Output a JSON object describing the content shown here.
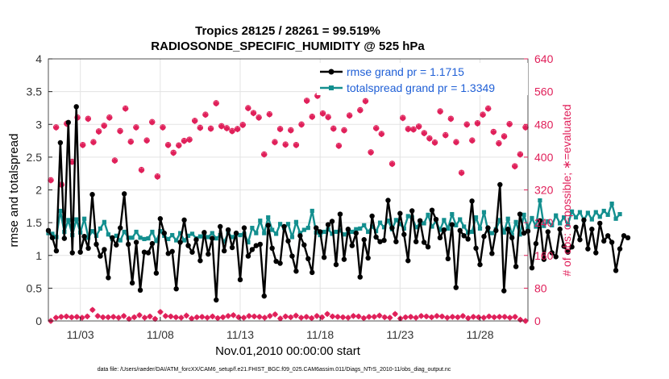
{
  "chart_data": {
    "type": "line",
    "title": "Tropics 28125 / 28261 = 99.519%",
    "subtitle": "RADIOSONDE_SPECIFIC_HUMIDITY @ 525 hPa",
    "xlabel": "Nov.01,2010 00:00:00 start",
    "ylabel": "rmse and totalspread",
    "y2label": "# of obs: o=possible; ∗=evaluated",
    "footnote": "data file: /Users/raeder/DAI/ATM_forcXX/CAM6_setup/f.e21.FHIST_BGC.f09_025.CAM6assim.011/Diags_NTrS_2010-11/obs_diag_output.nc",
    "xlim": [
      1.0,
      31.0
    ],
    "ylim": [
      0,
      4
    ],
    "y2lim": [
      0,
      640
    ],
    "x_ticks": [
      {
        "value": 3,
        "label": "11/03"
      },
      {
        "value": 8,
        "label": "11/08"
      },
      {
        "value": 13,
        "label": "11/13"
      },
      {
        "value": 18,
        "label": "11/18"
      },
      {
        "value": 23,
        "label": "11/23"
      },
      {
        "value": 28,
        "label": "11/28"
      }
    ],
    "y_ticks": [
      "0",
      "0.5",
      "1",
      "1.5",
      "2",
      "2.5",
      "3",
      "3.5",
      "4"
    ],
    "y2_ticks": [
      "0",
      "80",
      "160",
      "240",
      "320",
      "400",
      "480",
      "560",
      "640"
    ],
    "legend": [
      {
        "label": "rmse grand pr = 1.1715",
        "color": "#000000"
      },
      {
        "label": "totalspread grand pr = 1.3349",
        "color": "#138f8f"
      }
    ],
    "colors": {
      "rmse": "#000000",
      "spread": "#138f8f",
      "obs": "#e0205a",
      "grid": "#e3e3e3"
    },
    "x_start": 1.0,
    "x_step": 0.25,
    "series": [
      {
        "name": "rmse",
        "values": [
          1.38,
          1.27,
          1.07,
          2.72,
          1.26,
          3.03,
          1.04,
          3.27,
          1.05,
          1.29,
          1.11,
          1.93,
          1.17,
          0.99,
          1.09,
          0.66,
          1.27,
          1.16,
          1.42,
          1.94,
          1.17,
          0.58,
          1.2,
          0.47,
          1.05,
          1.04,
          1.18,
          0.73,
          1.56,
          1.34,
          1.03,
          1.06,
          0.49,
          1.2,
          1.54,
          1.15,
          1.05,
          1.24,
          0.92,
          1.35,
          1.02,
          1.26,
          0.32,
          1.44,
          1.07,
          1.39,
          1.12,
          1.34,
          0.63,
          1.42,
          0.99,
          1.09,
          1.15,
          1.17,
          0.38,
          1.46,
          1.11,
          0.91,
          0.88,
          1.44,
          1.22,
          0.99,
          0.76,
          1.3,
          1.16,
          0.95,
          0.74,
          1.42,
          1.36,
          0.97,
          1.47,
          1.52,
          0.86,
          1.63,
          0.94,
          1.4,
          1.15,
          1.34,
          0.67,
          1.24,
          0.96,
          1.6,
          1.28,
          1.21,
          1.23,
          1.84,
          1.42,
          1.21,
          1.64,
          1.32,
          0.92,
          1.68,
          1.21,
          1.53,
          1.2,
          1.13,
          1.69,
          1.55,
          1.27,
          1.39,
          0.95,
          1.47,
          0.51,
          1.38,
          1.3,
          1.25,
          1.83,
          1.11,
          0.86,
          1.29,
          1.42,
          1.03,
          1.38,
          2.08,
          0.46,
          1.4,
          1.27,
          0.83,
          1.63,
          1.34,
          1.37,
          0.81,
          1.18,
          1.53,
          0.94,
          1.36,
          1.04,
          0.98,
          1.4,
          1.14,
          1.05,
          1.13,
          1.43,
          1.24,
          1.54,
          1.1,
          1.4,
          1.04,
          1.49,
          1.22,
          1.3,
          1.2,
          0.77,
          1.1,
          1.3,
          1.27
        ]
      },
      {
        "name": "totalspread",
        "values": [
          1.34,
          1.33,
          1.28,
          1.68,
          1.36,
          1.54,
          1.31,
          1.55,
          1.35,
          1.56,
          1.27,
          1.37,
          1.3,
          1.41,
          1.51,
          1.32,
          1.25,
          1.3,
          1.23,
          1.36,
          1.27,
          1.27,
          1.36,
          1.27,
          1.25,
          1.26,
          1.36,
          1.22,
          1.37,
          1.3,
          1.25,
          1.31,
          1.23,
          1.34,
          1.23,
          1.3,
          1.33,
          1.26,
          1.29,
          1.3,
          1.28,
          1.34,
          1.26,
          1.31,
          1.21,
          1.34,
          1.28,
          1.33,
          1.31,
          1.33,
          1.2,
          1.42,
          1.34,
          1.53,
          1.34,
          1.58,
          1.39,
          1.33,
          1.48,
          1.42,
          1.48,
          1.28,
          1.51,
          1.34,
          1.39,
          1.42,
          1.68,
          1.35,
          1.31,
          1.36,
          1.4,
          1.33,
          1.36,
          1.38,
          1.32,
          1.35,
          1.36,
          1.4,
          1.41,
          1.46,
          1.36,
          1.44,
          1.37,
          1.5,
          1.43,
          1.53,
          1.4,
          1.54,
          1.48,
          1.41,
          1.6,
          1.58,
          1.43,
          1.49,
          1.49,
          1.62,
          1.44,
          1.52,
          1.39,
          1.54,
          1.41,
          1.63,
          1.46,
          1.55,
          1.44,
          1.35,
          1.36,
          1.58,
          1.41,
          1.66,
          1.38,
          1.34,
          1.4,
          1.54,
          1.35,
          1.56,
          1.31,
          1.51,
          1.32,
          1.62,
          1.41,
          1.57,
          1.44,
          1.84,
          1.45,
          1.52,
          1.46,
          1.61,
          1.49,
          1.58,
          1.47,
          1.67,
          1.58,
          1.66,
          1.54,
          1.65,
          1.55,
          1.66,
          1.59,
          1.68,
          1.62,
          1.79,
          1.56,
          1.63
        ]
      },
      {
        "name": "obs_possible",
        "axis": "right",
        "values": [
          344,
          473,
          333,
          482,
          389,
          497,
          430,
          494,
          437,
          463,
          477,
          497,
          392,
          464,
          519,
          438,
          473,
          369,
          441,
          486,
          353,
          473,
          430,
          411,
          429,
          440,
          443,
          489,
          472,
          504,
          470,
          532,
          476,
          471,
          464,
          469,
          479,
          520,
          508,
          497,
          407,
          505,
          437,
          469,
          431,
          466,
          430,
          480,
          538,
          499,
          550,
          507,
          498,
          470,
          428,
          466,
          502,
          565,
          515,
          537,
          412,
          471,
          457,
          561,
          384,
          575,
          496,
          469,
          468,
          475,
          459,
          446,
          436,
          512,
          454,
          494,
          437,
          362,
          480,
          441,
          483,
          504,
          519,
          462,
          434,
          451,
          481,
          378,
          407,
          473
        ]
      },
      {
        "name": "obs_evaluated",
        "axis": "right",
        "values": [
          343,
          472,
          332,
          481,
          388,
          496,
          429,
          493,
          436,
          462,
          476,
          496,
          391,
          463,
          518,
          437,
          472,
          368,
          440,
          485,
          352,
          472,
          429,
          410,
          428,
          439,
          442,
          488,
          471,
          503,
          469,
          531,
          475,
          470,
          463,
          468,
          478,
          519,
          507,
          496,
          406,
          504,
          436,
          468,
          430,
          465,
          429,
          479,
          537,
          498,
          549,
          506,
          497,
          469,
          427,
          465,
          501,
          564,
          514,
          536,
          411,
          470,
          456,
          560,
          383,
          574,
          495,
          468,
          467,
          474,
          458,
          445,
          435,
          511,
          453,
          493,
          436,
          361,
          479,
          440,
          482,
          503,
          518,
          461,
          433,
          450,
          480,
          377,
          406,
          472
        ]
      },
      {
        "name": "obs_low",
        "axis": "right",
        "values": [
          0,
          8,
          10,
          11,
          9,
          10,
          8,
          11,
          27,
          12,
          9,
          9,
          10,
          8,
          12,
          5,
          9,
          14,
          8,
          11,
          5,
          22,
          12,
          11,
          9,
          8,
          13,
          6,
          9,
          10,
          8,
          11,
          7,
          9,
          12,
          14,
          9,
          8,
          12,
          11,
          10,
          8,
          12,
          16,
          6,
          11,
          9,
          13,
          8,
          10,
          7,
          12,
          9,
          17,
          11,
          10,
          9,
          8,
          12,
          11,
          7,
          10,
          10,
          13,
          9,
          8,
          17,
          6,
          9,
          10,
          8,
          12,
          11,
          9,
          12,
          11,
          8,
          10,
          9,
          12,
          7,
          10,
          9,
          8,
          11,
          9,
          10,
          10,
          8,
          10,
          3,
          0
        ]
      }
    ]
  }
}
